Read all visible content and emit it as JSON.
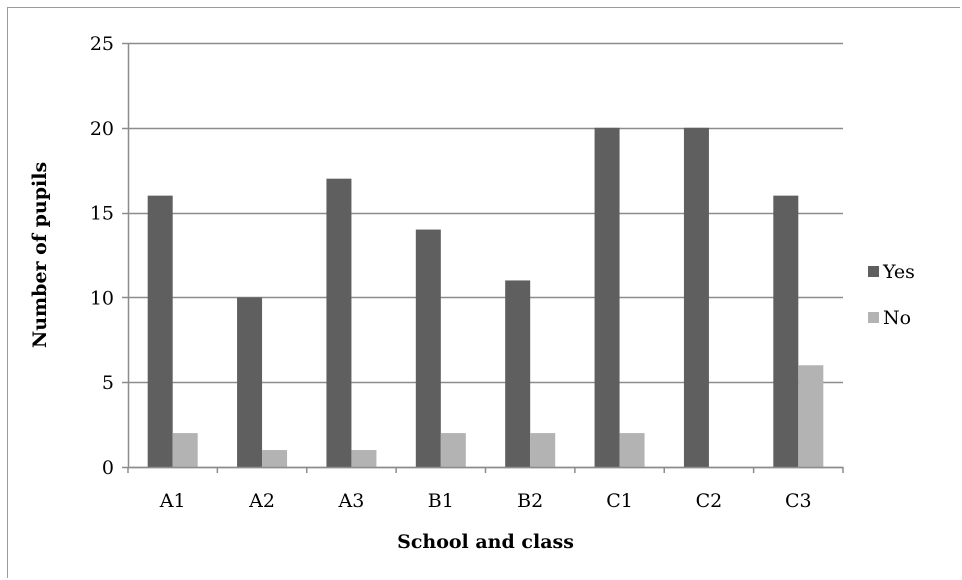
{
  "chart_data": {
    "type": "bar",
    "title": "",
    "xlabel": "School and class",
    "ylabel": "Number of pupils",
    "categories": [
      "A1",
      "A2",
      "A3",
      "B1",
      "B2",
      "C1",
      "C2",
      "C3"
    ],
    "series": [
      {
        "name": "Yes",
        "color": "#5f5f5f",
        "values": [
          16,
          10,
          17,
          14,
          11,
          20,
          20,
          16
        ]
      },
      {
        "name": "No",
        "color": "#b3b3b3",
        "values": [
          2,
          1,
          1,
          2,
          2,
          2,
          0,
          6
        ]
      }
    ],
    "ylim": [
      0,
      25
    ],
    "yticks": [
      0,
      5,
      10,
      15,
      20,
      25
    ],
    "grid": true,
    "legend_position": "right",
    "colors": {
      "gridline": "#8c8c8c",
      "axis": "#8c8c8c",
      "frame": "#9a9a9a"
    }
  }
}
